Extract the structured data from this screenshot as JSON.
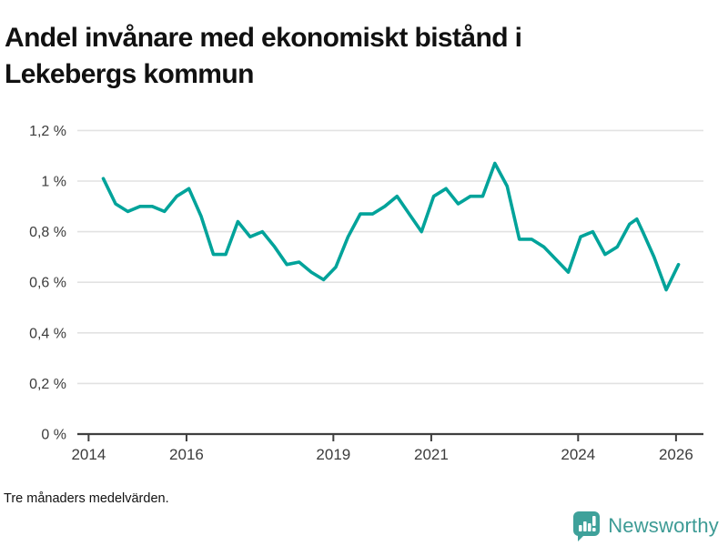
{
  "header": {
    "title_line1": "Andel invånare med ekonomiskt bistånd i",
    "title_line2": "Lekebergs kommun"
  },
  "footer": {
    "note": "Tre månaders medelvärden.",
    "brand_name": "Newsworthy"
  },
  "colors": {
    "line": "#00a39a",
    "brand_teal": "#3ea19a",
    "grid": "#e2e2e2",
    "axis": "#3f3f3f",
    "tick_label": "#3c3c3c",
    "title_text": "#111111"
  },
  "chart_data": {
    "type": "line",
    "title": "Andel invånare med ekonomiskt bistånd i Lekebergs kommun",
    "note": "Tre månaders medelvärden.",
    "unit": "%",
    "decimal_separator": ",",
    "grid": true,
    "legend": "none",
    "xlim": [
      2013.77,
      2026.56
    ],
    "ylim": [
      0,
      1.2
    ],
    "y_ticks": [
      {
        "value": 0,
        "label": "0 %"
      },
      {
        "value": 0.2,
        "label": "0,2 %"
      },
      {
        "value": 0.4,
        "label": "0,4 %"
      },
      {
        "value": 0.6,
        "label": "0,6 %"
      },
      {
        "value": 0.8,
        "label": "0,8 %"
      },
      {
        "value": 1,
        "label": "1 %"
      },
      {
        "value": 1.2,
        "label": "1,2 %"
      }
    ],
    "x_ticks": [
      {
        "value": 2014,
        "label": "2014"
      },
      {
        "value": 2016,
        "label": "2016"
      },
      {
        "value": 2019,
        "label": "2019"
      },
      {
        "value": 2021,
        "label": "2021"
      },
      {
        "value": 2024,
        "label": "2024"
      },
      {
        "value": 2026,
        "label": "2026"
      }
    ],
    "series": [
      {
        "name": "Andel invånare med ekonomiskt bistånd, Lekebergs kommun",
        "color": "#00a39a",
        "points": [
          [
            2014.3,
            1.01
          ],
          [
            2014.55,
            0.91
          ],
          [
            2014.8,
            0.88
          ],
          [
            2015.05,
            0.9
          ],
          [
            2015.3,
            0.9
          ],
          [
            2015.55,
            0.88
          ],
          [
            2015.8,
            0.94
          ],
          [
            2016.05,
            0.97
          ],
          [
            2016.3,
            0.86
          ],
          [
            2016.55,
            0.71
          ],
          [
            2016.8,
            0.71
          ],
          [
            2017.05,
            0.84
          ],
          [
            2017.3,
            0.78
          ],
          [
            2017.55,
            0.8
          ],
          [
            2017.8,
            0.74
          ],
          [
            2018.05,
            0.67
          ],
          [
            2018.3,
            0.68
          ],
          [
            2018.55,
            0.64
          ],
          [
            2018.8,
            0.61
          ],
          [
            2019.05,
            0.66
          ],
          [
            2019.3,
            0.78
          ],
          [
            2019.55,
            0.87
          ],
          [
            2019.8,
            0.87
          ],
          [
            2020.05,
            0.9
          ],
          [
            2020.3,
            0.94
          ],
          [
            2020.55,
            0.87
          ],
          [
            2020.8,
            0.8
          ],
          [
            2021.05,
            0.94
          ],
          [
            2021.3,
            0.97
          ],
          [
            2021.55,
            0.91
          ],
          [
            2021.8,
            0.94
          ],
          [
            2022.05,
            0.94
          ],
          [
            2022.3,
            1.07
          ],
          [
            2022.55,
            0.98
          ],
          [
            2022.8,
            0.77
          ],
          [
            2023.05,
            0.77
          ],
          [
            2023.3,
            0.74
          ],
          [
            2023.55,
            0.69
          ],
          [
            2023.8,
            0.64
          ],
          [
            2024.05,
            0.78
          ],
          [
            2024.3,
            0.8
          ],
          [
            2024.55,
            0.71
          ],
          [
            2024.8,
            0.74
          ],
          [
            2025.05,
            0.83
          ],
          [
            2025.2,
            0.85
          ],
          [
            2025.32,
            0.8
          ],
          [
            2025.55,
            0.7
          ],
          [
            2025.8,
            0.57
          ],
          [
            2026.05,
            0.67
          ]
        ]
      }
    ]
  }
}
